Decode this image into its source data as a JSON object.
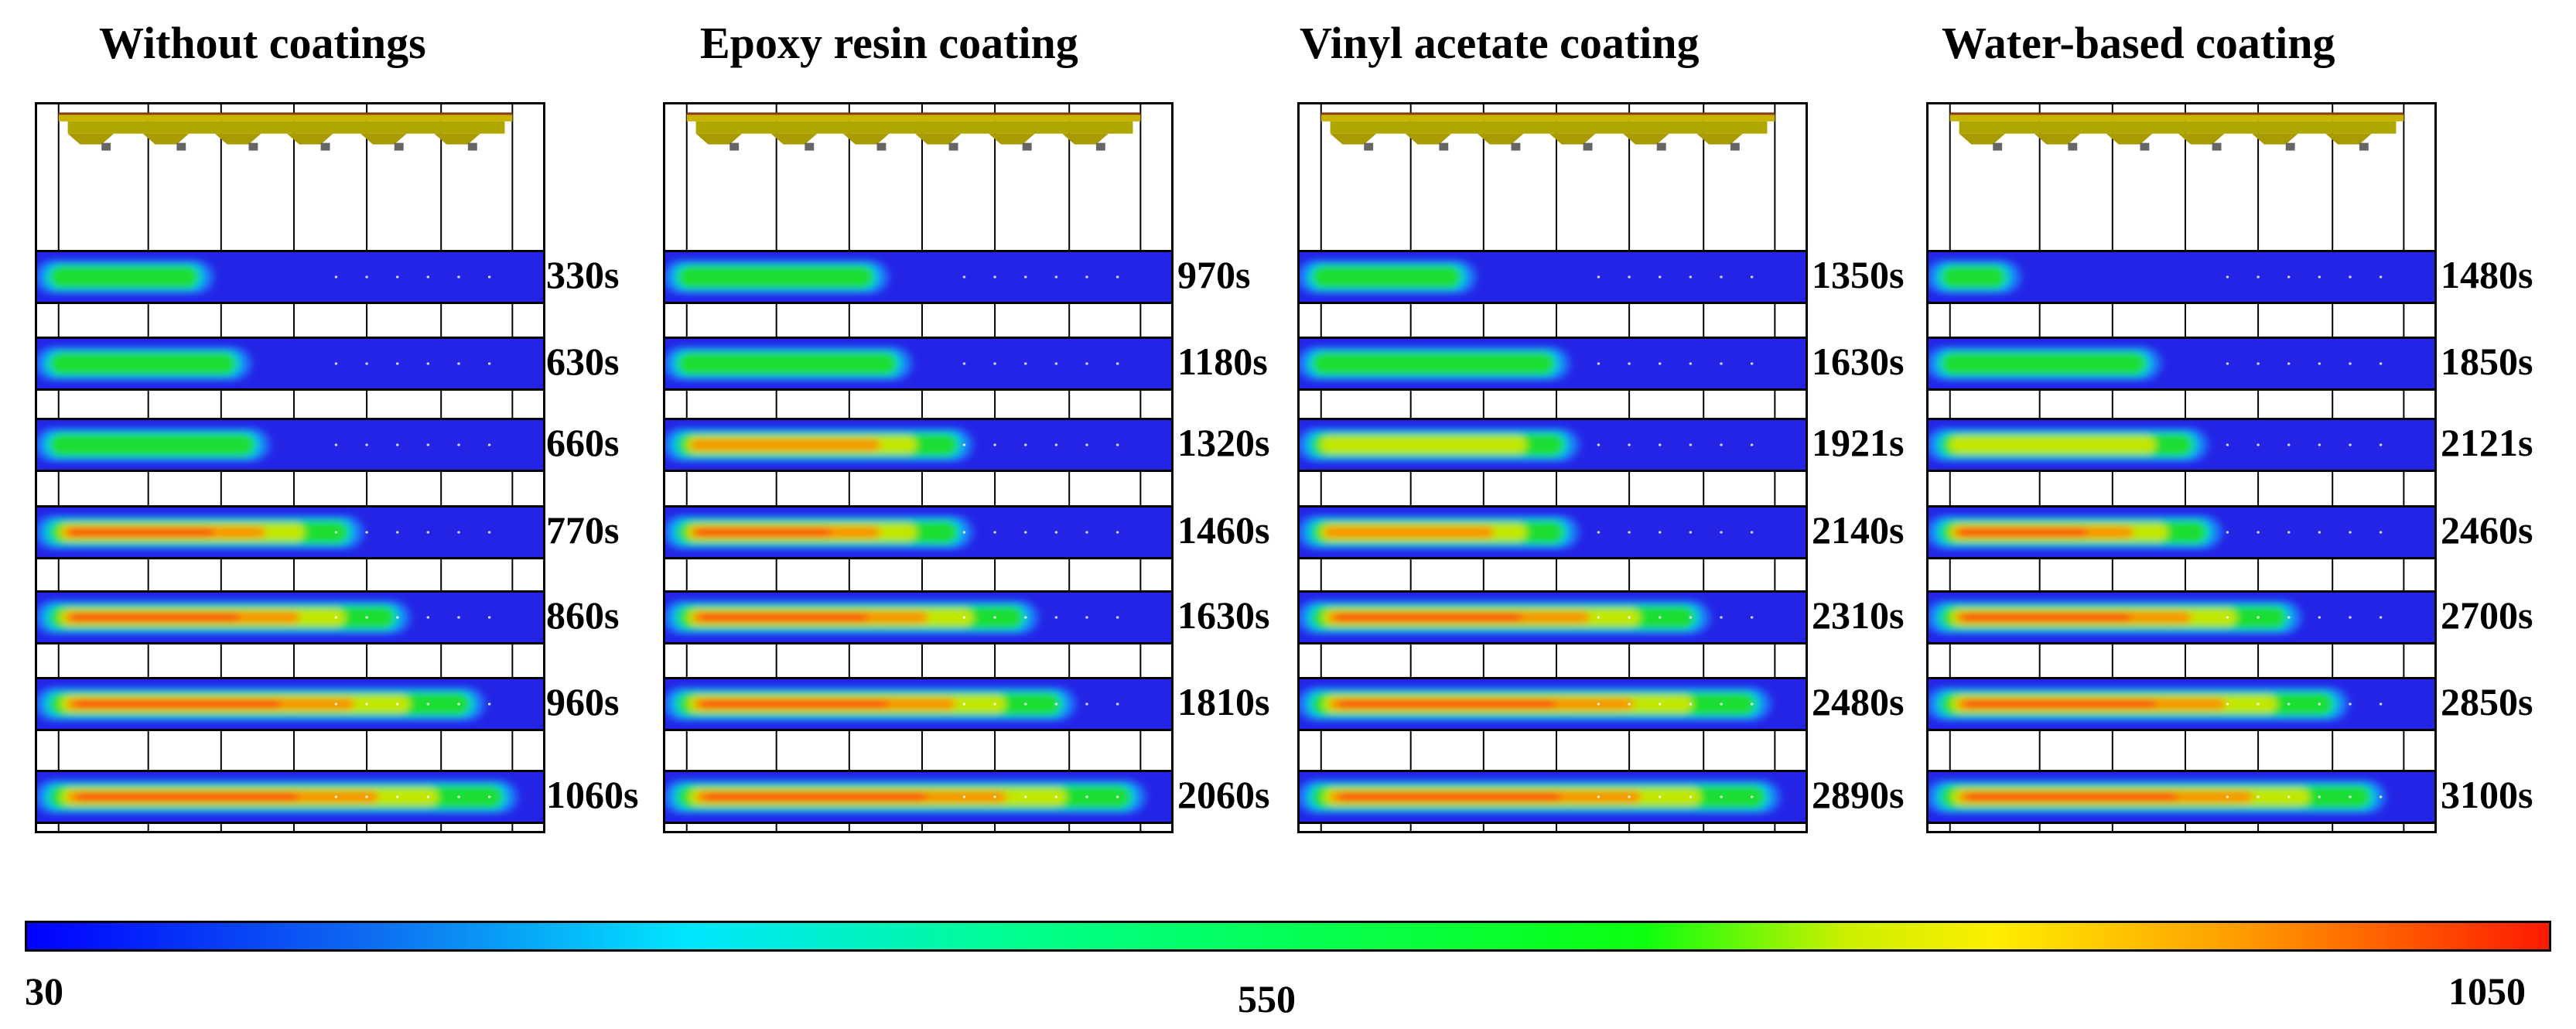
{
  "panels": [
    {
      "title": "Without coatings",
      "times": [
        "330s",
        "630s",
        "660s",
        "770s",
        "860s",
        "960s",
        "1060s"
      ],
      "fire_extent": [
        0.3,
        0.38,
        0.42,
        0.62,
        0.72,
        0.88,
        0.95
      ]
    },
    {
      "title": "Epoxy resin coating",
      "times": [
        "970s",
        "1180s",
        "1320s",
        "1460s",
        "1630s",
        "1810s",
        "2060s"
      ],
      "fire_extent": [
        0.4,
        0.45,
        0.58,
        0.58,
        0.72,
        0.8,
        0.95
      ]
    },
    {
      "title": "Vinyl acetate coating",
      "times": [
        "1350s",
        "1630s",
        "1921s",
        "2140s",
        "2310s",
        "2480s",
        "2890s"
      ],
      "fire_extent": [
        0.3,
        0.5,
        0.52,
        0.52,
        0.8,
        0.93,
        0.95
      ]
    },
    {
      "title": "Water-based coating",
      "times": [
        "1480s",
        "1850s",
        "2121s",
        "2460s",
        "2700s",
        "2850s",
        "3100s"
      ],
      "fire_extent": [
        0.12,
        0.42,
        0.52,
        0.55,
        0.72,
        0.82,
        0.9
      ]
    }
  ],
  "colorbar": {
    "min": "30",
    "mid": "550",
    "max": "1050",
    "colors": [
      "#0000ff",
      "#0e6ff0",
      "#00e5ff",
      "#00ff88",
      "#0aff10",
      "#c8f000",
      "#ffee00",
      "#ff9a00",
      "#ff1a00"
    ]
  }
}
